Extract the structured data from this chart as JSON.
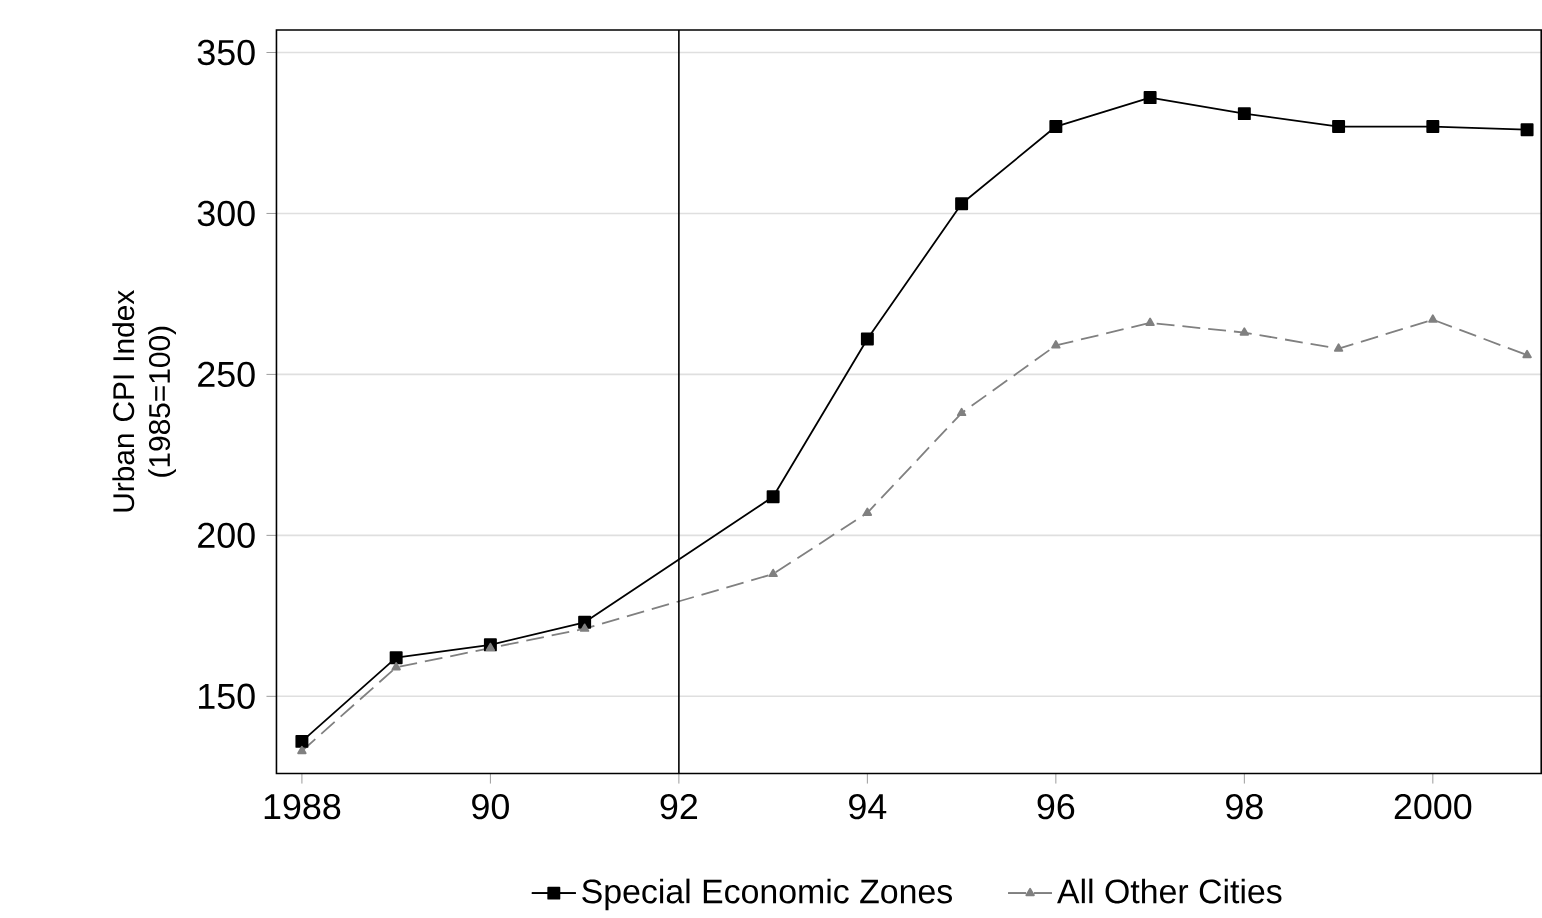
{
  "chart_data": {
    "type": "line",
    "ylabel": "Urban CPI Index (1985=100)",
    "xlim": [
      1987.73,
      2001.15
    ],
    "ylim": [
      126,
      357
    ],
    "xticks": [
      1988,
      {
        "value": 1990,
        "label": "90"
      },
      {
        "value": 1992,
        "label": "92"
      },
      {
        "value": 1994,
        "label": "94"
      },
      {
        "value": 1996,
        "label": "96"
      },
      {
        "value": 1998,
        "label": "98"
      },
      2000
    ],
    "yticks": [
      150,
      200,
      250,
      300,
      350
    ],
    "grid": "y",
    "legend": "bottom",
    "ref_lines": [
      {
        "axis": "x",
        "value": 1992,
        "color": "#000000"
      }
    ],
    "series": [
      {
        "name": "Special Economic Zones",
        "color": "#000000",
        "marker": "square",
        "line_style": "solid",
        "x": [
          1988,
          1989,
          1990,
          1991,
          1993,
          1994,
          1995,
          1996,
          1997,
          1998,
          1999,
          2000,
          2001
        ],
        "values": [
          136,
          162,
          166,
          173,
          212,
          261,
          303,
          327,
          336,
          331,
          327,
          327,
          326
        ]
      },
      {
        "name": "All Other Cities",
        "color": "#808080",
        "marker": "triangle",
        "line_style": "dashed",
        "x": [
          1988,
          1989,
          1990,
          1991,
          1993,
          1994,
          1995,
          1996,
          1997,
          1998,
          1999,
          2000,
          2001
        ],
        "values": [
          133,
          159,
          165,
          171,
          188,
          207,
          238,
          259,
          266,
          263,
          258,
          267,
          256
        ]
      }
    ]
  }
}
